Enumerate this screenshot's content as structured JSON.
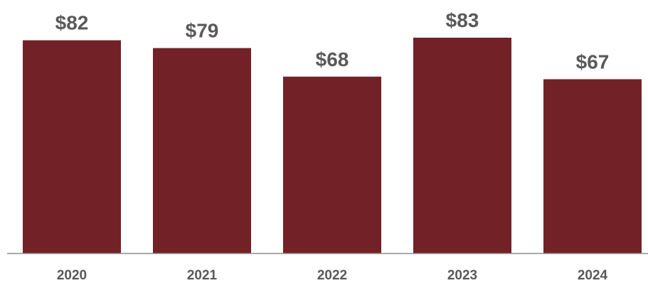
{
  "chart_data": {
    "type": "bar",
    "categories": [
      "2020",
      "2021",
      "2022",
      "2023",
      "2024"
    ],
    "values": [
      82,
      79,
      68,
      83,
      67
    ],
    "data_labels": [
      "$82",
      "$79",
      "$68",
      "$83",
      "$67"
    ],
    "title": "",
    "xlabel": "",
    "ylabel": "",
    "ylim": [
      0,
      83
    ],
    "grid": false,
    "legend": "none",
    "colors": {
      "bar": "#722226",
      "label": "#595959",
      "axis": "#8c8c8c",
      "background": "#ffffff"
    }
  }
}
